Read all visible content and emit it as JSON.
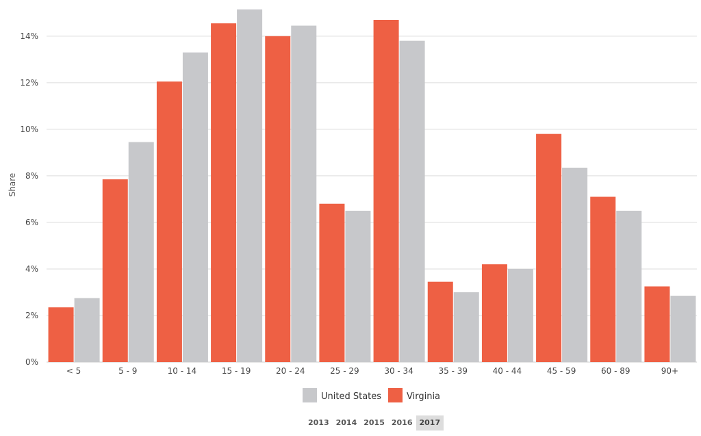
{
  "colors": {
    "virginia": "#ee6044",
    "united_states": "#c7c8cb",
    "grid": "#dcdcdc",
    "axis": "#cccccc"
  },
  "chart_data": {
    "type": "bar",
    "ylabel": "Share",
    "ylim": [
      0,
      15.2
    ],
    "y_ticks": [
      "0%",
      "2%",
      "4%",
      "6%",
      "8%",
      "10%",
      "12%",
      "14%"
    ],
    "y_tick_values": [
      0,
      2,
      4,
      6,
      8,
      10,
      12,
      14
    ],
    "categories": [
      "< 5",
      "5 - 9",
      "10 - 14",
      "15 - 19",
      "20 - 24",
      "25 - 29",
      "30 - 34",
      "35 - 39",
      "40 - 44",
      "45 - 59",
      "60 - 89",
      "90+"
    ],
    "series": [
      {
        "name": "Virginia",
        "values": [
          2.35,
          7.85,
          12.05,
          14.55,
          14.0,
          6.8,
          14.7,
          3.45,
          4.2,
          9.8,
          7.1,
          3.25
        ]
      },
      {
        "name": "United States",
        "values": [
          2.75,
          9.45,
          13.3,
          15.15,
          14.45,
          6.5,
          13.8,
          3.0,
          4.0,
          8.35,
          6.5,
          2.85
        ]
      }
    ],
    "legend": [
      "United States",
      "Virginia"
    ],
    "legend_position": "bottom-center",
    "grid": true
  },
  "year_selector": {
    "years": [
      "2013",
      "2014",
      "2015",
      "2016",
      "2017"
    ],
    "selected": "2017"
  }
}
